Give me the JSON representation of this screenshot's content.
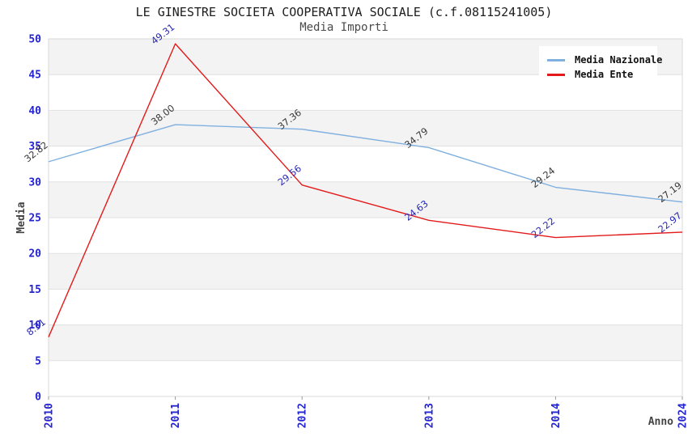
{
  "title": "LE GINESTRE SOCIETA COOPERATIVA SOCIALE (c.f.08115241005)",
  "subtitle": "Media Importi",
  "chart_data": {
    "type": "line",
    "title": "LE GINESTRE SOCIETA COOPERATIVA SOCIALE (c.f.08115241005)",
    "subtitle": "Media Importi",
    "xlabel": "Anno",
    "ylabel": "Media",
    "categories": [
      "2010",
      "2011",
      "2012",
      "2013",
      "2014",
      "2024"
    ],
    "series": [
      {
        "name": "Media Nazionale",
        "color": "#7fb0e0",
        "label_color": "#3a3a3a",
        "values": [
          32.82,
          38.0,
          37.36,
          34.79,
          29.24,
          27.19
        ]
      },
      {
        "name": "Media Ente",
        "color": "#e31a1a",
        "label_color": "#2929b8",
        "values": [
          8.31,
          49.31,
          29.56,
          24.63,
          22.22,
          22.97
        ]
      }
    ],
    "ylim": [
      0,
      50
    ],
    "ytick_step": 5,
    "yticks": [
      0,
      5,
      10,
      15,
      20,
      25,
      30,
      35,
      40,
      45,
      50
    ],
    "grid": "horizontal-bands",
    "legend_position": "top-right",
    "colors": {
      "tick_label": "#2424d0",
      "axis_title": "#444444",
      "band_fill": "#f3f3f3",
      "gridline": "#e1e1e1",
      "plot_border": "#d9d9d9",
      "tick_mark": "#999999"
    }
  }
}
